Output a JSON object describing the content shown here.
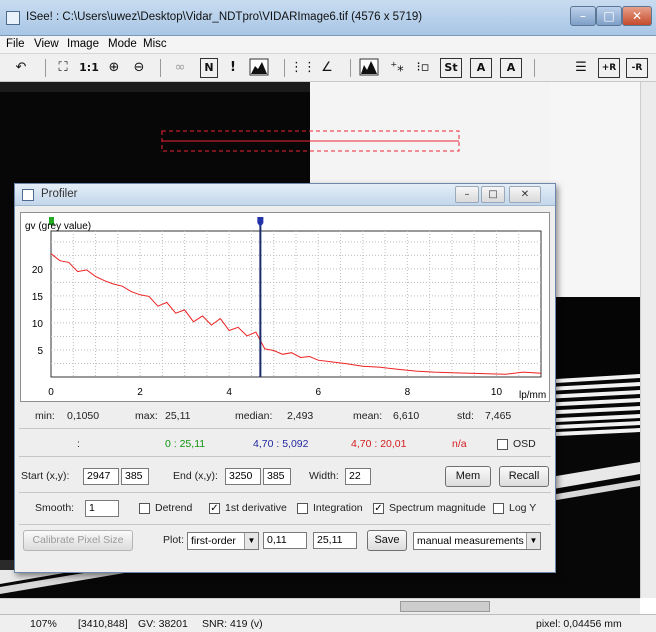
{
  "window": {
    "title": "ISee! : C:\\Users\\uwez\\Desktop\\Vidar_NDTpro\\VIDARImage6.tif (4576 x 5719)",
    "min": "–",
    "max": "□",
    "close": "✕"
  },
  "menu": [
    "File",
    "View",
    "Image",
    "Mode",
    "Misc"
  ],
  "toolbar": {
    "one_to_one": "1:1",
    "N": "N",
    "exclaim": "!",
    "s_t": "St",
    "A1": "A",
    "A2": "A",
    "plus_r": "+R",
    "minus_r": "-R"
  },
  "profiler": {
    "title": "Profiler",
    "stats": {
      "min_label": "min:",
      "min": "0,1050",
      "max_label": "max:",
      "max": "25,11",
      "median_label": "median:",
      "median": "2,493",
      "mean_label": "mean:",
      "mean": "6,610",
      "std_label": "std:",
      "std": "7,465"
    },
    "cursor": {
      "colon": ":",
      "green": "0 : 25,11",
      "blue": "4,70 : 5,092",
      "red": "4,70 : 20,01",
      "na": "n/a",
      "osd_label": "OSD"
    },
    "coords": {
      "start_label": "Start (x,y):",
      "start_x": "2947",
      "start_y": "385",
      "end_label": "End (x,y):",
      "end_x": "3250",
      "end_y": "385",
      "width_label": "Width:",
      "width": "22",
      "mem": "Mem",
      "recall": "Recall"
    },
    "options": {
      "smooth_label": "Smooth:",
      "smooth": "1",
      "detrend": "Detrend",
      "first_derivative": "1st derivative",
      "integration": "Integration",
      "spectrum": "Spectrum magnitude",
      "logy": "Log Y",
      "checked_mark": "✓"
    },
    "bottom": {
      "calibrate": "Calibrate Pixel Size",
      "plot_label": "Plot:",
      "plot_type": "first-order",
      "range_min": "0,11",
      "range_max": "25,11",
      "save": "Save",
      "mode": "manual measurements"
    }
  },
  "status": {
    "zoom": "107%",
    "coords": "[3410,848]",
    "gv": "GV: 38201",
    "snr": "SNR: 419 (v)",
    "pixel": "pixel: 0,04456 mm"
  },
  "chart_data": {
    "type": "line",
    "ylabel": "gv (grey value)",
    "xlabel": "lp/mm",
    "xlim": [
      0,
      11
    ],
    "ylim": [
      0,
      27
    ],
    "xticks": [
      0,
      2,
      4,
      6,
      8,
      10
    ],
    "yticks": [
      5,
      10,
      15,
      20
    ],
    "grid": true,
    "cursor_x": 4.7,
    "color": "#ee2222",
    "x": [
      0,
      0.2,
      0.4,
      0.6,
      0.8,
      1.0,
      1.2,
      1.4,
      1.6,
      1.8,
      2.0,
      2.2,
      2.4,
      2.6,
      2.8,
      3.0,
      3.2,
      3.4,
      3.6,
      3.8,
      4.0,
      4.2,
      4.4,
      4.6,
      4.8,
      5.0,
      5.2,
      5.4,
      5.6,
      5.8,
      6.0,
      6.3,
      6.6,
      7.0,
      7.4,
      7.8,
      8.2,
      8.6,
      9.0,
      9.4,
      9.8,
      10.2,
      10.6,
      11.0
    ],
    "y": [
      22.8,
      21.5,
      21.2,
      19.5,
      19.8,
      18.6,
      17.8,
      17.2,
      16.8,
      15.8,
      15.2,
      14.9,
      13.1,
      13.8,
      11.8,
      12.4,
      10.2,
      11.3,
      9.6,
      10.8,
      8.6,
      9.2,
      7.6,
      8.3,
      5.2,
      4.9,
      4.2,
      4.5,
      3.6,
      3.8,
      3.1,
      2.8,
      2.5,
      2.0,
      1.8,
      1.4,
      1.1,
      0.9,
      0.8,
      0.7,
      0.6,
      0.5,
      0.9,
      0.7
    ]
  }
}
